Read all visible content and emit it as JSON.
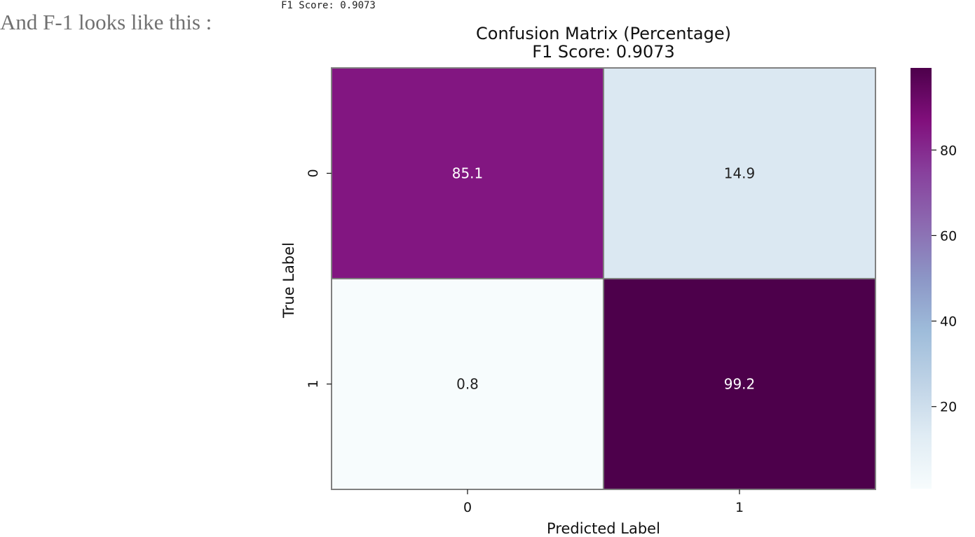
{
  "intro_text": "And F-1 looks like this :",
  "console_line": "F1 Score: 0.9073",
  "chart_data": {
    "type": "heatmap",
    "title": "Confusion Matrix (Percentage)",
    "subtitle": "F1 Score: 0.9073",
    "xlabel": "Predicted Label",
    "ylabel": "True Label",
    "x_categories": [
      "0",
      "1"
    ],
    "y_categories": [
      "0",
      "1"
    ],
    "values": [
      [
        85.1,
        14.9
      ],
      [
        0.8,
        99.2
      ]
    ],
    "value_labels": [
      [
        "85.1",
        "14.9"
      ],
      [
        "0.8",
        "99.2"
      ]
    ],
    "colorbar": {
      "range": [
        0.8,
        99.2
      ],
      "ticks": [
        20,
        40,
        60,
        80
      ],
      "tick_labels": [
        "20",
        "40",
        "60",
        "80"
      ],
      "colormap": [
        "#f7fcfd",
        "#e0ecf4",
        "#bfd3e6",
        "#9ebcda",
        "#8c96c6",
        "#8c6bb1",
        "#88419d",
        "#810f7c",
        "#4d004b"
      ]
    },
    "grid": false,
    "legend": "none"
  }
}
